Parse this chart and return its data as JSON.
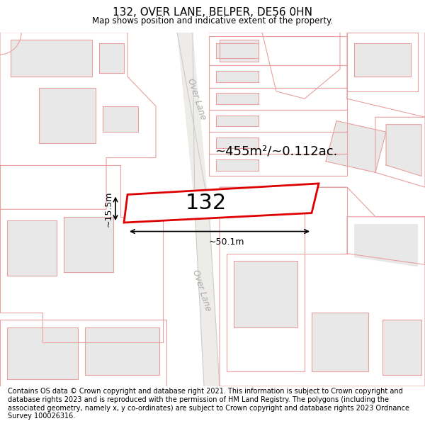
{
  "title": "132, OVER LANE, BELPER, DE56 0HN",
  "subtitle": "Map shows position and indicative extent of the property.",
  "footer": "Contains OS data © Crown copyright and database right 2021. This information is subject to Crown copyright and database rights 2023 and is reproduced with the permission of HM Land Registry. The polygons (including the associated geometry, namely x, y co-ordinates) are subject to Crown copyright and database rights 2023 Ordnance Survey 100026316.",
  "area_text": "~455m²/~0.112ac.",
  "label": "132",
  "dim_width": "~50.1m",
  "dim_height": "~15.5m",
  "map_bg": "#ffffff",
  "building_fill": "#e8e8e8",
  "building_edge": "#e8a0a0",
  "road_fill": "#f0ece6",
  "road_edge": "#cccccc",
  "highlight_color": "#dd0000",
  "highlight_fill": "#ffffff",
  "road_label_color": "#aaaaaa",
  "road_label": "Over Lane",
  "road_label2": "Over Lane",
  "title_fontsize": 11,
  "subtitle_fontsize": 8.5,
  "footer_fontsize": 7.0
}
